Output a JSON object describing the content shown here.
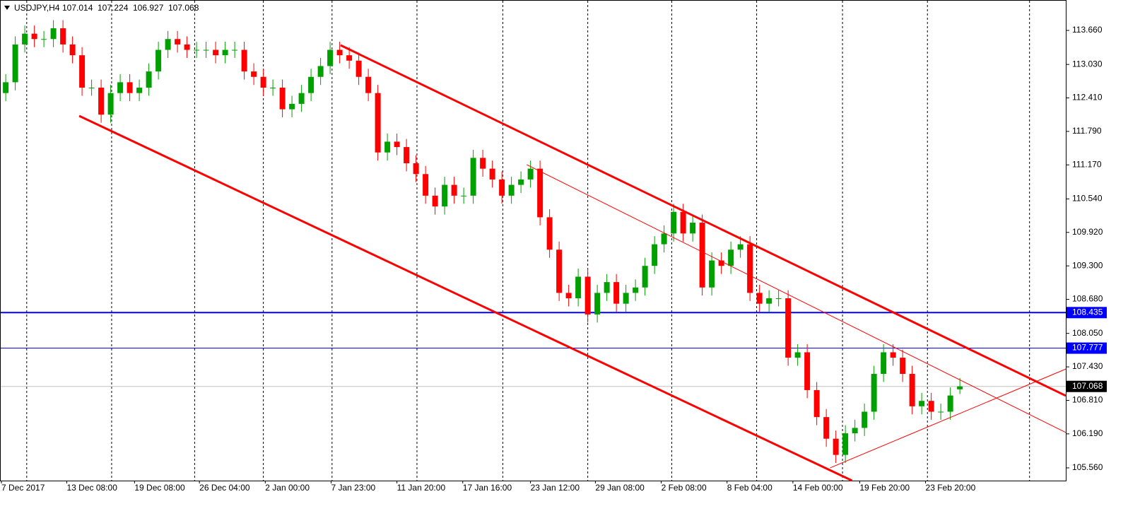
{
  "chart_data": {
    "type": "candlestick",
    "title": "USDJPY,H4",
    "up_color": "#00a000",
    "down_color": "#ff0000",
    "open": [
      112.5,
      112.7,
      113.4,
      113.6,
      113.5,
      113.5,
      113.7,
      113.4,
      113.2,
      112.6,
      112.6,
      112.1,
      112.5,
      112.7,
      112.5,
      112.6,
      112.9,
      113.3,
      113.5,
      113.4,
      113.3,
      113.3,
      113.3,
      113.2,
      113.3,
      113.3,
      112.9,
      112.8,
      112.6,
      112.6,
      112.2,
      112.3,
      112.5,
      112.8,
      113.0,
      113.3,
      113.2,
      113.1,
      112.8,
      112.5,
      111.4,
      111.6,
      111.5,
      111.2,
      111.0,
      110.6,
      110.4,
      110.8,
      110.6,
      110.6,
      111.3,
      111.1,
      110.9,
      110.6,
      110.8,
      110.9,
      111.1,
      110.2,
      109.6,
      108.8,
      108.7,
      109.1,
      108.4,
      108.8,
      109.0,
      108.6,
      108.8,
      108.9,
      109.3,
      109.7,
      109.9,
      110.3,
      109.9,
      110.1,
      108.9,
      109.4,
      109.3,
      109.6,
      109.7,
      108.8,
      108.6,
      108.7,
      108.7,
      107.6,
      107.7,
      107.0,
      106.5,
      106.1,
      105.8,
      106.2,
      106.3,
      106.6,
      107.3,
      107.7,
      107.6,
      107.3,
      106.7,
      106.8,
      106.6,
      106.6,
      107.014
    ],
    "high": [
      112.85,
      113.55,
      113.75,
      113.75,
      113.65,
      113.85,
      113.85,
      113.55,
      113.35,
      112.75,
      112.75,
      112.65,
      112.85,
      112.85,
      112.75,
      113.05,
      113.45,
      113.65,
      113.65,
      113.55,
      113.45,
      113.45,
      113.45,
      113.45,
      113.45,
      113.45,
      113.05,
      112.95,
      112.75,
      112.75,
      112.45,
      112.65,
      112.95,
      113.15,
      113.45,
      113.45,
      113.35,
      113.25,
      112.95,
      112.65,
      111.75,
      111.75,
      111.65,
      111.35,
      111.15,
      110.75,
      110.95,
      110.95,
      110.75,
      111.45,
      111.45,
      111.25,
      111.05,
      110.95,
      111.05,
      111.25,
      111.25,
      110.35,
      109.75,
      108.95,
      109.25,
      109.25,
      108.95,
      109.15,
      109.15,
      108.95,
      109.05,
      109.45,
      109.85,
      110.05,
      110.45,
      110.45,
      110.25,
      110.25,
      109.55,
      109.55,
      109.75,
      109.85,
      109.85,
      108.95,
      108.85,
      108.85,
      108.85,
      107.85,
      107.85,
      107.15,
      106.65,
      106.25,
      106.35,
      106.45,
      106.75,
      107.45,
      107.85,
      107.85,
      107.75,
      107.45,
      106.95,
      106.95,
      106.75,
      107.05,
      107.224
    ],
    "low": [
      112.35,
      112.55,
      113.25,
      113.35,
      113.35,
      113.35,
      113.25,
      113.05,
      112.45,
      112.45,
      111.95,
      111.95,
      112.35,
      112.35,
      112.35,
      112.45,
      112.75,
      113.15,
      113.25,
      113.15,
      113.15,
      113.15,
      113.05,
      113.05,
      113.15,
      112.75,
      112.65,
      112.45,
      112.45,
      112.05,
      112.05,
      112.15,
      112.35,
      112.65,
      112.85,
      113.05,
      112.95,
      112.65,
      112.35,
      111.25,
      111.25,
      111.35,
      111.05,
      110.85,
      110.45,
      110.25,
      110.25,
      110.45,
      110.45,
      110.45,
      110.95,
      110.75,
      110.45,
      110.45,
      110.65,
      110.75,
      110.05,
      109.45,
      108.65,
      108.55,
      108.55,
      108.25,
      108.25,
      108.65,
      108.45,
      108.45,
      108.65,
      108.75,
      109.15,
      109.55,
      109.75,
      109.75,
      109.75,
      108.75,
      108.75,
      109.15,
      109.15,
      109.45,
      108.65,
      108.45,
      108.45,
      108.55,
      107.45,
      107.45,
      106.85,
      106.35,
      105.95,
      105.65,
      105.65,
      106.05,
      106.15,
      106.45,
      107.15,
      107.45,
      107.15,
      106.55,
      106.55,
      106.45,
      106.45,
      106.45,
      106.927
    ],
    "close": [
      112.7,
      113.4,
      113.6,
      113.5,
      113.5,
      113.7,
      113.4,
      113.2,
      112.6,
      112.6,
      112.1,
      112.5,
      112.7,
      112.5,
      112.6,
      112.9,
      113.3,
      113.5,
      113.4,
      113.3,
      113.3,
      113.3,
      113.2,
      113.3,
      113.3,
      112.9,
      112.8,
      112.6,
      112.6,
      112.2,
      112.3,
      112.5,
      112.8,
      113.0,
      113.3,
      113.2,
      113.1,
      112.8,
      112.5,
      111.4,
      111.6,
      111.5,
      111.2,
      111.0,
      110.6,
      110.4,
      110.8,
      110.6,
      110.6,
      111.3,
      111.1,
      110.9,
      110.6,
      110.8,
      110.9,
      111.1,
      110.2,
      109.6,
      108.8,
      108.7,
      109.1,
      108.4,
      108.8,
      109.0,
      108.6,
      108.8,
      108.9,
      109.3,
      109.7,
      109.9,
      110.3,
      109.9,
      110.1,
      108.9,
      109.4,
      109.3,
      109.6,
      109.7,
      108.8,
      108.6,
      108.7,
      108.7,
      107.6,
      107.7,
      107.0,
      106.5,
      106.1,
      105.8,
      106.2,
      106.3,
      106.6,
      107.3,
      107.7,
      107.6,
      107.3,
      106.7,
      106.8,
      106.6,
      106.6,
      106.9,
      107.068
    ],
    "xlim": [
      -0.6,
      111.1
    ],
    "ylim": [
      105.324,
      114.223
    ],
    "yticks": [
      {
        "value": 113.66,
        "label": "113.660"
      },
      {
        "value": 113.03,
        "label": "113.030"
      },
      {
        "value": 112.41,
        "label": "112.410"
      },
      {
        "value": 111.79,
        "label": "111.790"
      },
      {
        "value": 111.17,
        "label": "111.170"
      },
      {
        "value": 110.54,
        "label": "110.540"
      },
      {
        "value": 109.92,
        "label": "109.920"
      },
      {
        "value": 109.3,
        "label": "109.300"
      },
      {
        "value": 108.68,
        "label": "108.680"
      },
      {
        "value": 108.05,
        "label": "108.050"
      },
      {
        "value": 107.43,
        "label": "107.430"
      },
      {
        "value": 106.81,
        "label": "106.810"
      },
      {
        "value": 106.19,
        "label": "106.190"
      },
      {
        "value": 105.56,
        "label": "105.560"
      }
    ],
    "xticks": [
      {
        "value": -0.45,
        "label": "7 Dec 2017"
      },
      {
        "value": 6.4,
        "label": "13 Dec 08:00"
      },
      {
        "value": 13.5,
        "label": "19 Dec 08:00"
      },
      {
        "value": 20.3,
        "label": "26 Dec 04:00"
      },
      {
        "value": 27.2,
        "label": "2 Jan 00:00"
      },
      {
        "value": 34.1,
        "label": "7 Jan 23:00"
      },
      {
        "value": 41.0,
        "label": "11 Jan 20:00"
      },
      {
        "value": 47.9,
        "label": "17 Jan 16:00"
      },
      {
        "value": 55.0,
        "label": "23 Jan 12:00"
      },
      {
        "value": 61.8,
        "label": "29 Jan 08:00"
      },
      {
        "value": 68.7,
        "label": "2 Feb 08:00"
      },
      {
        "value": 75.6,
        "label": "8 Feb 04:00"
      },
      {
        "value": 82.5,
        "label": "14 Feb 00:00"
      },
      {
        "value": 89.5,
        "label": "19 Feb 20:00"
      },
      {
        "value": 96.4,
        "label": "23 Feb 20:00"
      }
    ],
    "xgrid": [
      2.2,
      11.1,
      19.8,
      27.0,
      34.2,
      43.1,
      52.1,
      61.0,
      69.8,
      78.7,
      87.7,
      96.6,
      107.3
    ],
    "levels": [
      {
        "value": 108.435,
        "color": "#0000ff",
        "width": 2
      },
      {
        "value": 107.777,
        "color": "#0000ff",
        "width": 1
      },
      {
        "value": 107.068,
        "color": "#c0c0c0",
        "width": 1,
        "label_color": "#000000"
      }
    ],
    "trendlines": [
      {
        "x": [
          35.1,
          111.1
        ],
        "y": [
          113.385,
          106.895
        ],
        "color": "#ff0000",
        "width": 3
      },
      {
        "x": [
          7.7,
          88.7
        ],
        "y": [
          112.077,
          105.324
        ],
        "color": "#ff0000",
        "width": 3
      },
      {
        "x": [
          54.6,
          111.1
        ],
        "y": [
          111.174,
          106.215
        ],
        "color": "#ff0000",
        "width": 1
      },
      {
        "x": [
          86.4,
          111.1
        ],
        "y": [
          105.56,
          107.39
        ],
        "color": "#ff0000",
        "width": 1
      }
    ]
  }
}
